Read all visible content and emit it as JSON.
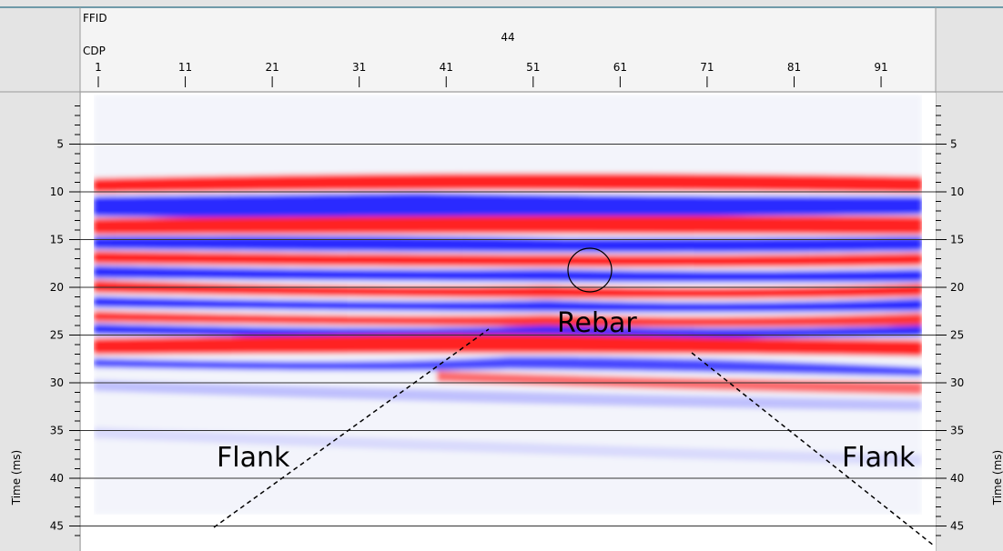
{
  "header": {
    "ffid_label": "FFID",
    "ffid_value": 44,
    "cdp_label": "CDP",
    "cdp_ticks": [
      1,
      11,
      21,
      31,
      41,
      51,
      61,
      71,
      81,
      91
    ]
  },
  "time_axis": {
    "label": "Time (ms)",
    "ticks": [
      5,
      10,
      15,
      20,
      25,
      30,
      35,
      40,
      45
    ]
  },
  "annotations": {
    "rebar": "Rebar",
    "flank_left": "Flank",
    "flank_right": "Flank"
  }
}
